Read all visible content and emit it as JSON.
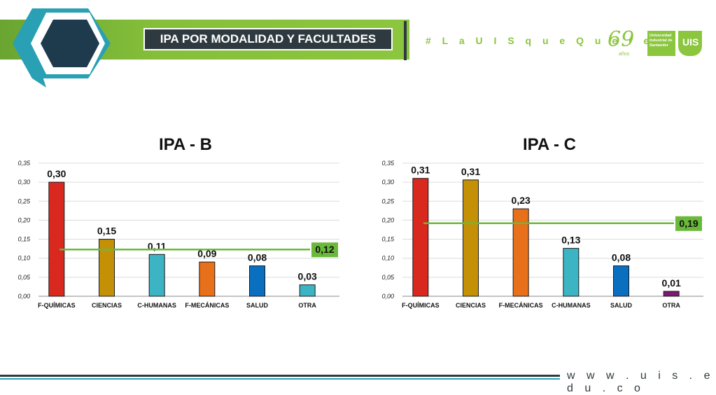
{
  "header": {
    "title": "IPA POR MODALIDAD Y FACULTADES",
    "hashtag": "# L a U I S q u e Q u e r e m o s",
    "logo_number": "69",
    "logo_years": "años",
    "logo_university": "Universidad Industrial de Santander",
    "logo_shield": "UIS"
  },
  "footer": {
    "url": "w w w . u i s . e d u . c o"
  },
  "colors": {
    "accent_green": "#8cc63f",
    "dark": "#2f3a40",
    "teal": "#2aa0b4"
  },
  "chart_data": [
    {
      "type": "bar",
      "title": "IPA - B",
      "categories": [
        "F-QUÍMICAS",
        "CIENCIAS",
        "C-HUMANAS",
        "F-MECÁNICAS",
        "SALUD",
        "OTRA"
      ],
      "values": [
        0.3,
        0.15,
        0.11,
        0.09,
        0.08,
        0.03
      ],
      "value_labels": [
        "0,30",
        "0,15",
        "0,11",
        "0,09",
        "0,08",
        "0,03"
      ],
      "colors": [
        "#d9281e",
        "#c49106",
        "#3cb4c4",
        "#e8701a",
        "#0a6fbf",
        "#3cb4c4"
      ],
      "ylim": [
        0,
        0.35
      ],
      "yticks": [
        "0,00",
        "0,05",
        "0,10",
        "0,15",
        "0,20",
        "0,25",
        "0,30",
        "0,35"
      ],
      "reference_line": {
        "value": 0.123,
        "label": "0,12"
      },
      "grid": true
    },
    {
      "type": "bar",
      "title": "IPA - C",
      "categories": [
        "F-QUÍMICAS",
        "CIENCIAS",
        "F-MECÁNICAS",
        "C-HUMANAS",
        "SALUD",
        "OTRA"
      ],
      "values": [
        0.31,
        0.306,
        0.23,
        0.126,
        0.08,
        0.013
      ],
      "value_labels": [
        "0,31",
        "0,31",
        "0,23",
        "0,13",
        "0,08",
        "0,01"
      ],
      "colors": [
        "#d9281e",
        "#c49106",
        "#e8701a",
        "#3cb4c4",
        "#0a6fbf",
        "#7a1a70"
      ],
      "ylim": [
        0,
        0.35
      ],
      "yticks": [
        "0,00",
        "0,05",
        "0,10",
        "0,15",
        "0,20",
        "0,25",
        "0,30",
        "0,35"
      ],
      "reference_line": {
        "value": 0.192,
        "label": "0,19"
      },
      "grid": true
    }
  ]
}
